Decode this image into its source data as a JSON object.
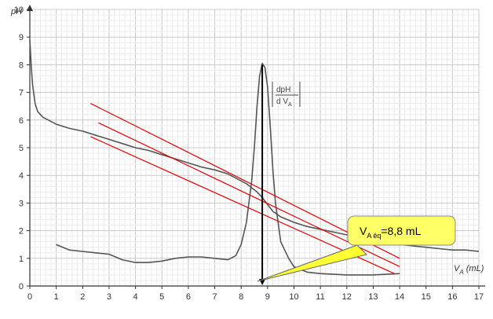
{
  "chart_data": {
    "type": "line",
    "ylabel": "pH",
    "xlabel": "V",
    "xlabel_sub": "A",
    "xlabel_unit": "(mL)",
    "xlim": [
      0,
      17
    ],
    "ylim": [
      0,
      10
    ],
    "x_ticks": [
      "0",
      "1",
      "2",
      "3",
      "4",
      "5",
      "6",
      "7",
      "8",
      "9",
      "10",
      "11",
      "12",
      "13",
      "14",
      "15",
      "16",
      "17"
    ],
    "y_ticks": [
      "0",
      "1",
      "2",
      "3",
      "4",
      "5",
      "6",
      "7",
      "8",
      "9",
      "10"
    ],
    "grid": true,
    "derivative_label": {
      "num": "dpH",
      "den": "d V",
      "den_sub": "A"
    },
    "annotation": {
      "prefix": "V",
      "sub": "A éq",
      "text": "=8,8 mL",
      "box_color": "#ffff66",
      "arrow_color": "#ffff33"
    },
    "series": [
      {
        "color": "#555555",
        "x": [
          0,
          0.05,
          0.1,
          0.2,
          0.3,
          0.5,
          0.7,
          1,
          1.5,
          2,
          2.5,
          3,
          3.5,
          4,
          4.5,
          5,
          5.5,
          6,
          6.5,
          7,
          7.5,
          7.8,
          8,
          8.2,
          8.4,
          8.6,
          8.8,
          9,
          9.2,
          9.5,
          10,
          10.5,
          11,
          11.5,
          12,
          12.5,
          13,
          13.5,
          14,
          14.5,
          15,
          15.5,
          16,
          16.5,
          17
        ],
        "y": [
          8.9,
          8.0,
          7.3,
          6.6,
          6.3,
          6.1,
          6.0,
          5.85,
          5.7,
          5.6,
          5.45,
          5.3,
          5.15,
          5.0,
          4.9,
          4.75,
          4.6,
          4.45,
          4.3,
          4.2,
          4.05,
          3.9,
          3.8,
          3.7,
          3.55,
          3.4,
          3.2,
          2.95,
          2.7,
          2.5,
          2.3,
          2.15,
          2.05,
          1.95,
          1.85,
          1.75,
          1.7,
          1.6,
          1.5,
          1.45,
          1.4,
          1.35,
          1.3,
          1.3,
          1.25
        ]
      },
      {
        "color": "#555555",
        "x": [
          1,
          1.5,
          2,
          2.5,
          3,
          3.5,
          4,
          4.5,
          5,
          5.5,
          6,
          6.5,
          7,
          7.5,
          7.8,
          8,
          8.2,
          8.4,
          8.5,
          8.6,
          8.7,
          8.8,
          8.9,
          9.0,
          9.1,
          9.2,
          9.3,
          9.5,
          9.8,
          10,
          10.5,
          11,
          12,
          13,
          14
        ],
        "y": [
          1.5,
          1.3,
          1.25,
          1.2,
          1.15,
          0.95,
          0.85,
          0.85,
          0.9,
          1.0,
          1.05,
          1.05,
          1.0,
          0.95,
          1.1,
          1.5,
          2.3,
          3.8,
          5.0,
          6.5,
          7.6,
          8.05,
          7.9,
          7.2,
          5.8,
          4.2,
          3.0,
          1.6,
          1.0,
          0.7,
          0.5,
          0.45,
          0.4,
          0.4,
          0.45
        ]
      }
    ],
    "tangents": [
      {
        "color": "#e00000",
        "x": [
          2.3,
          14
        ],
        "y": [
          6.6,
          1.0
        ]
      },
      {
        "color": "#e00000",
        "x": [
          2.6,
          14
        ],
        "y": [
          5.9,
          0.7
        ]
      },
      {
        "color": "#e00000",
        "x": [
          2.3,
          13.8
        ],
        "y": [
          5.4,
          0.45
        ]
      }
    ],
    "equivalence": {
      "x": 8.8,
      "y_top": 8.0
    }
  }
}
